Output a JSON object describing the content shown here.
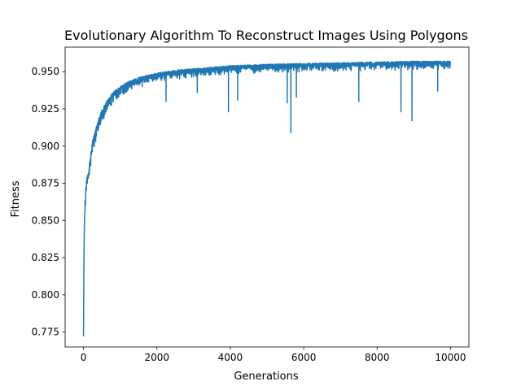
{
  "chart_data": {
    "type": "line",
    "title": "Evolutionary Algorithm To Reconstruct Images Using Polygons",
    "xlabel": "Generations",
    "ylabel": "Fitness",
    "xlim": [
      -500,
      10500
    ],
    "ylim": [
      0.765,
      0.9665
    ],
    "xticks": [
      0,
      2000,
      4000,
      6000,
      8000,
      10000
    ],
    "yticks": [
      0.775,
      0.8,
      0.825,
      0.85,
      0.875,
      0.9,
      0.925,
      0.95
    ],
    "ytick_labels": [
      "0.775",
      "0.800",
      "0.825",
      "0.850",
      "0.875",
      "0.900",
      "0.925",
      "0.950"
    ],
    "grid": false,
    "legend": false,
    "line_color": "#1f77b4",
    "series": [
      {
        "name": "",
        "x": [
          0,
          10,
          20,
          40,
          60,
          80,
          100,
          150,
          200,
          250,
          300,
          400,
          500,
          600,
          800,
          1000,
          1200,
          1500,
          2000,
          2500,
          3000,
          3500,
          4000,
          5000,
          6000,
          7000,
          8000,
          9000,
          10000
        ],
        "y": [
          0.772,
          0.818,
          0.845,
          0.862,
          0.87,
          0.876,
          0.88,
          0.885,
          0.895,
          0.903,
          0.909,
          0.917,
          0.924,
          0.929,
          0.936,
          0.94,
          0.943,
          0.946,
          0.949,
          0.951,
          0.952,
          0.953,
          0.954,
          0.955,
          0.9555,
          0.956,
          0.9565,
          0.957,
          0.957
        ]
      }
    ],
    "dips": [
      {
        "x": 250,
        "y": 0.904
      },
      {
        "x": 350,
        "y": 0.91
      },
      {
        "x": 480,
        "y": 0.917
      },
      {
        "x": 900,
        "y": 0.932
      },
      {
        "x": 1600,
        "y": 0.94
      },
      {
        "x": 2250,
        "y": 0.93
      },
      {
        "x": 3100,
        "y": 0.936
      },
      {
        "x": 3950,
        "y": 0.923
      },
      {
        "x": 4200,
        "y": 0.931
      },
      {
        "x": 5550,
        "y": 0.929
      },
      {
        "x": 5650,
        "y": 0.909
      },
      {
        "x": 5800,
        "y": 0.933
      },
      {
        "x": 7500,
        "y": 0.93
      },
      {
        "x": 8650,
        "y": 0.923
      },
      {
        "x": 8950,
        "y": 0.917
      },
      {
        "x": 9650,
        "y": 0.937
      }
    ]
  }
}
